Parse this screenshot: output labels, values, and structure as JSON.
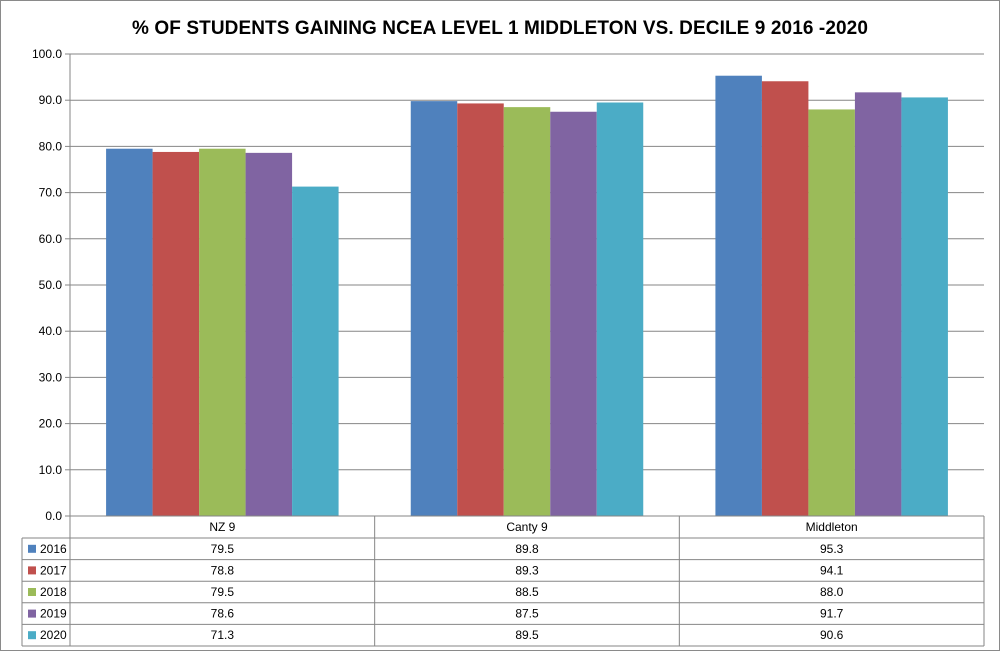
{
  "colors": {
    "2016": "#4f81bd",
    "2017": "#c0504d",
    "2018": "#9bbb59",
    "2019": "#8064a2",
    "2020": "#4bacc6",
    "gridline": "#868686",
    "border": "#8a8a8a"
  },
  "chart_data": {
    "type": "bar",
    "title": "% OF STUDENTS GAINING NCEA LEVEL 1 MIDDLETON VS. DECILE 9 2016 -2020",
    "xlabel": "",
    "ylabel": "",
    "ylim": [
      0,
      100
    ],
    "yticks": [
      "0.0",
      "10.0",
      "20.0",
      "30.0",
      "40.0",
      "50.0",
      "60.0",
      "70.0",
      "80.0",
      "90.0",
      "100.0"
    ],
    "grid": true,
    "legend": "data-table",
    "categories": [
      "NZ 9",
      "Canty 9",
      "Middleton"
    ],
    "series": [
      {
        "name": "2016",
        "values": [
          79.5,
          89.8,
          95.3
        ],
        "labels": [
          "79.5",
          "89.8",
          "95.3"
        ]
      },
      {
        "name": "2017",
        "values": [
          78.8,
          89.3,
          94.1
        ],
        "labels": [
          "78.8",
          "89.3",
          "94.1"
        ]
      },
      {
        "name": "2018",
        "values": [
          79.5,
          88.5,
          88.0
        ],
        "labels": [
          "79.5",
          "88.5",
          "88.0"
        ]
      },
      {
        "name": "2019",
        "values": [
          78.6,
          87.5,
          91.7
        ],
        "labels": [
          "78.6",
          "87.5",
          "91.7"
        ]
      },
      {
        "name": "2020",
        "values": [
          71.3,
          89.5,
          90.6
        ],
        "labels": [
          "71.3",
          "89.5",
          "90.6"
        ]
      }
    ]
  }
}
